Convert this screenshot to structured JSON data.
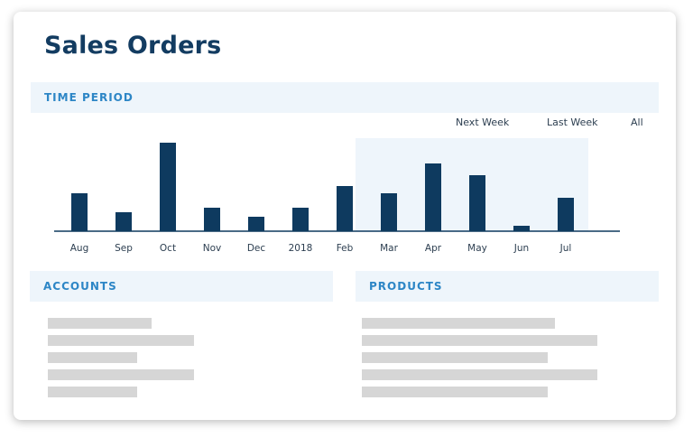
{
  "page": {
    "title": "Sales Orders"
  },
  "sections": {
    "time_period": "TIME PERIOD",
    "accounts": "ACCOUNTS",
    "products": "PRODUCTS"
  },
  "filters": {
    "next_week": "Next Week",
    "last_week": "Last Week",
    "all": "All"
  },
  "colors": {
    "bar": "#0e3a5f",
    "highlight_band": "#eef5fb",
    "header_text": "#2d86c6",
    "placeholder": "#d6d6d6"
  },
  "chart_data": {
    "type": "bar",
    "categories": [
      "Aug",
      "Sep",
      "Oct",
      "Nov",
      "Dec",
      "2018",
      "Feb",
      "Mar",
      "Apr",
      "May",
      "Jun",
      "Jul"
    ],
    "values": [
      42,
      21,
      98,
      26,
      16,
      26,
      50,
      42,
      75,
      62,
      6,
      37
    ],
    "highlighted_range": [
      "Mar",
      "Jul"
    ],
    "title": "",
    "xlabel": "",
    "ylabel": "",
    "ylim": [
      0,
      100
    ],
    "grid": false,
    "legend": "none"
  },
  "accounts": {
    "placeholder_widths": [
      0.71,
      1.0,
      0.61,
      1.0,
      0.61
    ]
  },
  "products": {
    "placeholder_widths": [
      0.82,
      1.0,
      0.79,
      1.0,
      0.79
    ]
  }
}
